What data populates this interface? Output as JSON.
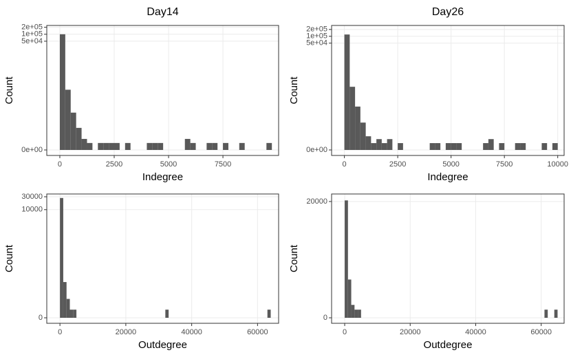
{
  "chart_data": [
    {
      "type": "histogram",
      "title": "Day14",
      "x_label": "Indegree",
      "y_label": "Count",
      "yscale": "log1p",
      "color": "#595959",
      "grid": true,
      "bins": [
        0,
        250,
        500,
        750,
        1000,
        1250,
        1500,
        1750,
        2000,
        2250,
        2500,
        2750,
        3000,
        3250,
        3500,
        3750,
        4000,
        4250,
        4500,
        4750,
        5000,
        5250,
        5500,
        5750,
        6000,
        6250,
        6500,
        6750,
        7000,
        7250,
        7500,
        7750,
        8000,
        8250,
        8500,
        8750,
        9000,
        9250,
        9500,
        9750,
        10000
      ],
      "values": [
        100000,
        400,
        40,
        8,
        2,
        1,
        0,
        1,
        1,
        1,
        1,
        0,
        1,
        0,
        0,
        0,
        1,
        1,
        1,
        0,
        0,
        0,
        0,
        2,
        1,
        0,
        0,
        1,
        1,
        0,
        1,
        0,
        0,
        1,
        0,
        0,
        0,
        0,
        1,
        0
      ],
      "xlim": [
        -600,
        10060
      ],
      "xticks": [
        0,
        2500,
        5000,
        7500
      ],
      "ylim": [
        0,
        240000
      ],
      "yticks": [
        {
          "value": 0,
          "label": "0e+00"
        },
        {
          "value": 50000,
          "label": "5e+04"
        },
        {
          "value": 100000,
          "label": "1e+05"
        },
        {
          "value": 200000,
          "label": "2e+05"
        }
      ]
    },
    {
      "type": "histogram",
      "title": "Day26",
      "x_label": "Indegree",
      "y_label": "Count",
      "yscale": "log1p",
      "color": "#595959",
      "grid": true,
      "bins": [
        0,
        250,
        500,
        750,
        1000,
        1250,
        1500,
        1750,
        2000,
        2250,
        2500,
        2750,
        3000,
        3250,
        3500,
        3750,
        4000,
        4250,
        4500,
        4750,
        5000,
        5250,
        5500,
        5750,
        6000,
        6250,
        6500,
        6750,
        7000,
        7250,
        7500,
        7750,
        8000,
        8250,
        8500,
        8750,
        9000,
        9250,
        9500,
        9750,
        10000
      ],
      "values": [
        120000,
        600,
        80,
        15,
        3,
        1,
        2,
        1,
        2,
        0,
        1,
        0,
        0,
        0,
        0,
        0,
        1,
        1,
        0,
        1,
        1,
        1,
        0,
        0,
        0,
        0,
        1,
        2,
        0,
        1,
        0,
        0,
        1,
        1,
        0,
        0,
        0,
        1,
        0,
        1
      ],
      "xlim": [
        -600,
        10300
      ],
      "xticks": [
        0,
        2500,
        5000,
        7500,
        10000
      ],
      "ylim": [
        0,
        300000
      ],
      "yticks": [
        {
          "value": 0,
          "label": "0e+00"
        },
        {
          "value": 50000,
          "label": "5e+04"
        },
        {
          "value": 100000,
          "label": "1e+05"
        },
        {
          "value": 200000,
          "label": "2e+05"
        }
      ]
    },
    {
      "type": "histogram",
      "x_label": "Outdegree",
      "y_label": "Count",
      "yscale": "log1p",
      "color": "#595959",
      "grid": true,
      "bins": [
        0,
        1000,
        2000,
        3000,
        4000,
        5000,
        6000,
        7000,
        8000,
        9000,
        10000,
        11000,
        12000,
        13000,
        14000,
        15000,
        16000,
        17000,
        18000,
        19000,
        20000,
        21000,
        22000,
        23000,
        24000,
        25000,
        26000,
        27000,
        28000,
        29000,
        30000,
        31000,
        32000,
        33000,
        34000,
        35000,
        36000,
        37000,
        38000,
        39000,
        40000,
        41000,
        42000,
        43000,
        44000,
        45000,
        46000,
        47000,
        48000,
        49000,
        50000,
        51000,
        52000,
        53000,
        54000,
        55000,
        56000,
        57000,
        58000,
        59000,
        60000,
        61000,
        62000,
        63000,
        64000
      ],
      "values": [
        27000,
        20,
        4,
        1,
        1,
        0,
        0,
        0,
        0,
        0,
        0,
        0,
        0,
        0,
        0,
        0,
        0,
        0,
        0,
        0,
        0,
        0,
        0,
        0,
        0,
        0,
        0,
        0,
        0,
        0,
        0,
        0,
        1,
        0,
        0,
        0,
        0,
        0,
        0,
        0,
        0,
        0,
        0,
        0,
        0,
        0,
        0,
        0,
        0,
        0,
        0,
        0,
        0,
        0,
        0,
        0,
        0,
        0,
        0,
        0,
        0,
        0,
        0,
        1
      ],
      "xlim": [
        -4000,
        66400
      ],
      "xticks": [
        0,
        20000,
        40000,
        60000
      ],
      "ylim": [
        0,
        38000
      ],
      "yticks": [
        0,
        10000,
        30000
      ]
    },
    {
      "type": "histogram",
      "x_label": "Outdegree",
      "y_label": "Count",
      "yscale": "log1p",
      "color": "#595959",
      "grid": true,
      "bins": [
        0,
        1000,
        2000,
        3000,
        4000,
        5000,
        6000,
        7000,
        8000,
        9000,
        10000,
        11000,
        12000,
        13000,
        14000,
        15000,
        16000,
        17000,
        18000,
        19000,
        20000,
        21000,
        22000,
        23000,
        24000,
        25000,
        26000,
        27000,
        28000,
        29000,
        30000,
        31000,
        32000,
        33000,
        34000,
        35000,
        36000,
        37000,
        38000,
        39000,
        40000,
        41000,
        42000,
        43000,
        44000,
        45000,
        46000,
        47000,
        48000,
        49000,
        50000,
        51000,
        52000,
        53000,
        54000,
        55000,
        56000,
        57000,
        58000,
        59000,
        60000,
        61000,
        62000,
        63000,
        64000,
        65000
      ],
      "values": [
        22000,
        25,
        2,
        1,
        1,
        0,
        0,
        0,
        0,
        0,
        0,
        0,
        0,
        0,
        0,
        0,
        0,
        0,
        0,
        0,
        0,
        0,
        0,
        0,
        0,
        0,
        0,
        0,
        0,
        0,
        0,
        0,
        0,
        0,
        0,
        0,
        0,
        0,
        0,
        0,
        0,
        0,
        0,
        0,
        0,
        0,
        0,
        0,
        0,
        0,
        0,
        0,
        0,
        0,
        0,
        0,
        0,
        0,
        0,
        0,
        0,
        1,
        0,
        0,
        1
      ],
      "xlim": [
        -4000,
        67000
      ],
      "xticks": [
        0,
        20000,
        40000,
        60000
      ],
      "ylim": [
        0,
        38000
      ],
      "yticks": [
        0,
        20000
      ]
    }
  ]
}
